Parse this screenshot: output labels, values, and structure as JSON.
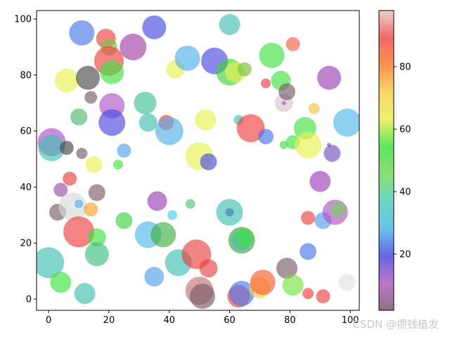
{
  "chart_data": {
    "type": "scatter",
    "title": "",
    "xlabel": "",
    "ylabel": "",
    "xlim": [
      -4,
      103
    ],
    "ylim": [
      -4,
      103
    ],
    "x_ticks": [
      0,
      20,
      40,
      60,
      80,
      100
    ],
    "y_ticks": [
      0,
      20,
      40,
      60,
      80,
      100
    ],
    "grid": false,
    "colorbar": {
      "colormap": "gist_rainbow_like",
      "range": [
        2,
        98
      ],
      "ticks": [
        20,
        40,
        60,
        80
      ],
      "stops": [
        "#7a5a6a",
        "#b060c0",
        "#4a4ae0",
        "#50b8e8",
        "#50d0b8",
        "#78d860",
        "#40e040",
        "#e8f050",
        "#f8d050",
        "#f88030",
        "#f05050",
        "#e8c8c8"
      ]
    },
    "points": [
      {
        "x": 1,
        "y": 56,
        "r": 20,
        "c": "#b050c8"
      },
      {
        "x": 1,
        "y": 54,
        "r": 19,
        "c": "#40c0b0"
      },
      {
        "x": 0,
        "y": 13,
        "r": 22,
        "c": "#40c0b0"
      },
      {
        "x": 3,
        "y": 31,
        "r": 12,
        "c": "#7a5a6a"
      },
      {
        "x": 4,
        "y": 39,
        "r": 10,
        "c": "#9a50a8"
      },
      {
        "x": 4,
        "y": 6,
        "r": 15,
        "c": "#40e040"
      },
      {
        "x": 6,
        "y": 54,
        "r": 10,
        "c": "#4a4a4a"
      },
      {
        "x": 6,
        "y": 78,
        "r": 17,
        "c": "#e8f050"
      },
      {
        "x": 7,
        "y": 43,
        "r": 10,
        "c": "#e84040"
      },
      {
        "x": 8,
        "y": 33,
        "r": 20,
        "c": "#d8d8d8"
      },
      {
        "x": 10,
        "y": 65,
        "r": 12,
        "c": "#50b870"
      },
      {
        "x": 10,
        "y": 34,
        "r": 6,
        "c": "#50b0e8"
      },
      {
        "x": 10,
        "y": 24,
        "r": 22,
        "c": "#f04040"
      },
      {
        "x": 11,
        "y": 95,
        "r": 18,
        "c": "#4a78e8"
      },
      {
        "x": 11,
        "y": 52,
        "r": 8,
        "c": "#7a5a6a"
      },
      {
        "x": 12,
        "y": 2,
        "r": 15,
        "c": "#40c0b0"
      },
      {
        "x": 13,
        "y": 79,
        "r": 17,
        "c": "#4a4a4a"
      },
      {
        "x": 14,
        "y": 72,
        "r": 9,
        "c": "#7a5a6a"
      },
      {
        "x": 14,
        "y": 32,
        "r": 10,
        "c": "#f8a030"
      },
      {
        "x": 15,
        "y": 48,
        "r": 12,
        "c": "#e8f050"
      },
      {
        "x": 16,
        "y": 38,
        "r": 12,
        "c": "#7a5a6a"
      },
      {
        "x": 16,
        "y": 22,
        "r": 13,
        "c": "#40e040"
      },
      {
        "x": 16,
        "y": 16,
        "r": 17,
        "c": "#40c080"
      },
      {
        "x": 19,
        "y": 93,
        "r": 14,
        "c": "#f04040"
      },
      {
        "x": 20,
        "y": 90,
        "r": 12,
        "c": "#78c048"
      },
      {
        "x": 20,
        "y": 85,
        "r": 21,
        "c": "#f04040"
      },
      {
        "x": 21,
        "y": 81,
        "r": 17,
        "c": "#40e040"
      },
      {
        "x": 21,
        "y": 69,
        "r": 18,
        "c": "#b050c8"
      },
      {
        "x": 21,
        "y": 63,
        "r": 19,
        "c": "#4a4ae0"
      },
      {
        "x": 23,
        "y": 48,
        "r": 7,
        "c": "#40e040"
      },
      {
        "x": 25,
        "y": 53,
        "r": 10,
        "c": "#50a0e8"
      },
      {
        "x": 25,
        "y": 28,
        "r": 12,
        "c": "#40d040"
      },
      {
        "x": 28,
        "y": 90,
        "r": 19,
        "c": "#a040a0"
      },
      {
        "x": 32,
        "y": 70,
        "r": 16,
        "c": "#40c090"
      },
      {
        "x": 33,
        "y": 63,
        "r": 13,
        "c": "#40c0b0"
      },
      {
        "x": 33,
        "y": 23,
        "r": 19,
        "c": "#50b8e8"
      },
      {
        "x": 35,
        "y": 97,
        "r": 17,
        "c": "#4a4ae0"
      },
      {
        "x": 35,
        "y": 8,
        "r": 14,
        "c": "#50a0e8"
      },
      {
        "x": 36,
        "y": 35,
        "r": 14,
        "c": "#9a40b0"
      },
      {
        "x": 38,
        "y": 23,
        "r": 18,
        "c": "#40b040"
      },
      {
        "x": 39,
        "y": 63,
        "r": 11,
        "c": "#e84040"
      },
      {
        "x": 40,
        "y": 60,
        "r": 20,
        "c": "#50b0e8"
      },
      {
        "x": 41,
        "y": 30,
        "r": 7,
        "c": "#50c8e8"
      },
      {
        "x": 42,
        "y": 82,
        "r": 13,
        "c": "#e8f050"
      },
      {
        "x": 43,
        "y": 13,
        "r": 19,
        "c": "#40c0b0"
      },
      {
        "x": 46,
        "y": 86,
        "r": 18,
        "c": "#50b0e8"
      },
      {
        "x": 47,
        "y": 34,
        "r": 7,
        "c": "#50c080"
      },
      {
        "x": 49,
        "y": 16,
        "r": 21,
        "c": "#e84040"
      },
      {
        "x": 50,
        "y": 51,
        "r": 20,
        "c": "#e8f050"
      },
      {
        "x": 50,
        "y": 3,
        "r": 20,
        "c": "#c07070"
      },
      {
        "x": 51,
        "y": 1,
        "r": 18,
        "c": "#7a5a6a"
      },
      {
        "x": 52,
        "y": 64,
        "r": 15,
        "c": "#e8f050"
      },
      {
        "x": 53,
        "y": 49,
        "r": 12,
        "c": "#4a4ae0"
      },
      {
        "x": 53,
        "y": 11,
        "r": 13,
        "c": "#e84040"
      },
      {
        "x": 55,
        "y": 85,
        "r": 19,
        "c": "#4a4ae0"
      },
      {
        "x": 60,
        "y": 98,
        "r": 15,
        "c": "#40c0b0"
      },
      {
        "x": 60,
        "y": 81,
        "r": 19,
        "c": "#40d040"
      },
      {
        "x": 60,
        "y": 31,
        "r": 19,
        "c": "#40c0b0"
      },
      {
        "x": 60,
        "y": 31,
        "r": 6,
        "c": "#4a78c8"
      },
      {
        "x": 62,
        "y": 81,
        "r": 15,
        "c": "#e8f050"
      },
      {
        "x": 63,
        "y": 64,
        "r": 7,
        "c": "#40c0b0"
      },
      {
        "x": 63,
        "y": 1,
        "r": 16,
        "c": "#f04040"
      },
      {
        "x": 64,
        "y": 2,
        "r": 18,
        "c": "#4a78e8"
      },
      {
        "x": 64,
        "y": 21,
        "r": 19,
        "c": "#40a040"
      },
      {
        "x": 64,
        "y": 21,
        "r": 14,
        "c": "#40c0b0"
      },
      {
        "x": 65,
        "y": 82,
        "r": 10,
        "c": "#78c048"
      },
      {
        "x": 65,
        "y": 22,
        "r": 13,
        "c": "#40e040"
      },
      {
        "x": 67,
        "y": 61,
        "r": 20,
        "c": "#f04040"
      },
      {
        "x": 70,
        "y": 4,
        "r": 15,
        "c": "#f8d050"
      },
      {
        "x": 71,
        "y": 6,
        "r": 18,
        "c": "#f86030"
      },
      {
        "x": 72,
        "y": 77,
        "r": 7,
        "c": "#e84040"
      },
      {
        "x": 72,
        "y": 58,
        "r": 11,
        "c": "#4a78e8"
      },
      {
        "x": 74,
        "y": 87,
        "r": 18,
        "c": "#40e040"
      },
      {
        "x": 77,
        "y": 78,
        "r": 14,
        "c": "#40e040"
      },
      {
        "x": 78,
        "y": 70,
        "r": 13,
        "c": "#d8c8c8"
      },
      {
        "x": 78,
        "y": 70,
        "r": 3,
        "c": "#b050c8"
      },
      {
        "x": 78,
        "y": 55,
        "r": 6,
        "c": "#40e040"
      },
      {
        "x": 79,
        "y": 74,
        "r": 12,
        "c": "#7a5a6a"
      },
      {
        "x": 79,
        "y": 11,
        "r": 15,
        "c": "#7a5a6a"
      },
      {
        "x": 81,
        "y": 91,
        "r": 10,
        "c": "#f06040"
      },
      {
        "x": 81,
        "y": 56,
        "r": 10,
        "c": "#40e040"
      },
      {
        "x": 81,
        "y": 5,
        "r": 15,
        "c": "#78e040"
      },
      {
        "x": 85,
        "y": 61,
        "r": 16,
        "c": "#40e040"
      },
      {
        "x": 86,
        "y": 55,
        "r": 19,
        "c": "#e8f050"
      },
      {
        "x": 86,
        "y": 29,
        "r": 10,
        "c": "#e84040"
      },
      {
        "x": 86,
        "y": 17,
        "r": 12,
        "c": "#4a78e8"
      },
      {
        "x": 86,
        "y": 2,
        "r": 8,
        "c": "#f04040"
      },
      {
        "x": 88,
        "y": 68,
        "r": 8,
        "c": "#f8c040"
      },
      {
        "x": 90,
        "y": 42,
        "r": 15,
        "c": "#a040b8"
      },
      {
        "x": 91,
        "y": 28,
        "r": 12,
        "c": "#50a0e8"
      },
      {
        "x": 91,
        "y": 1,
        "r": 10,
        "c": "#e84040"
      },
      {
        "x": 93,
        "y": 79,
        "r": 17,
        "c": "#9a40b0"
      },
      {
        "x": 93,
        "y": 55,
        "r": 3,
        "c": "#a040a0"
      },
      {
        "x": 94,
        "y": 52,
        "r": 12,
        "c": "#7050c0"
      },
      {
        "x": 95,
        "y": 31,
        "r": 18,
        "c": "#b050c8"
      },
      {
        "x": 96,
        "y": 32,
        "r": 11,
        "c": "#78d060"
      },
      {
        "x": 99,
        "y": 63,
        "r": 20,
        "c": "#50b8e8"
      },
      {
        "x": 99,
        "y": 6,
        "r": 12,
        "c": "#e0e0e0"
      }
    ]
  },
  "watermark": "CSDN @攒钱植发"
}
